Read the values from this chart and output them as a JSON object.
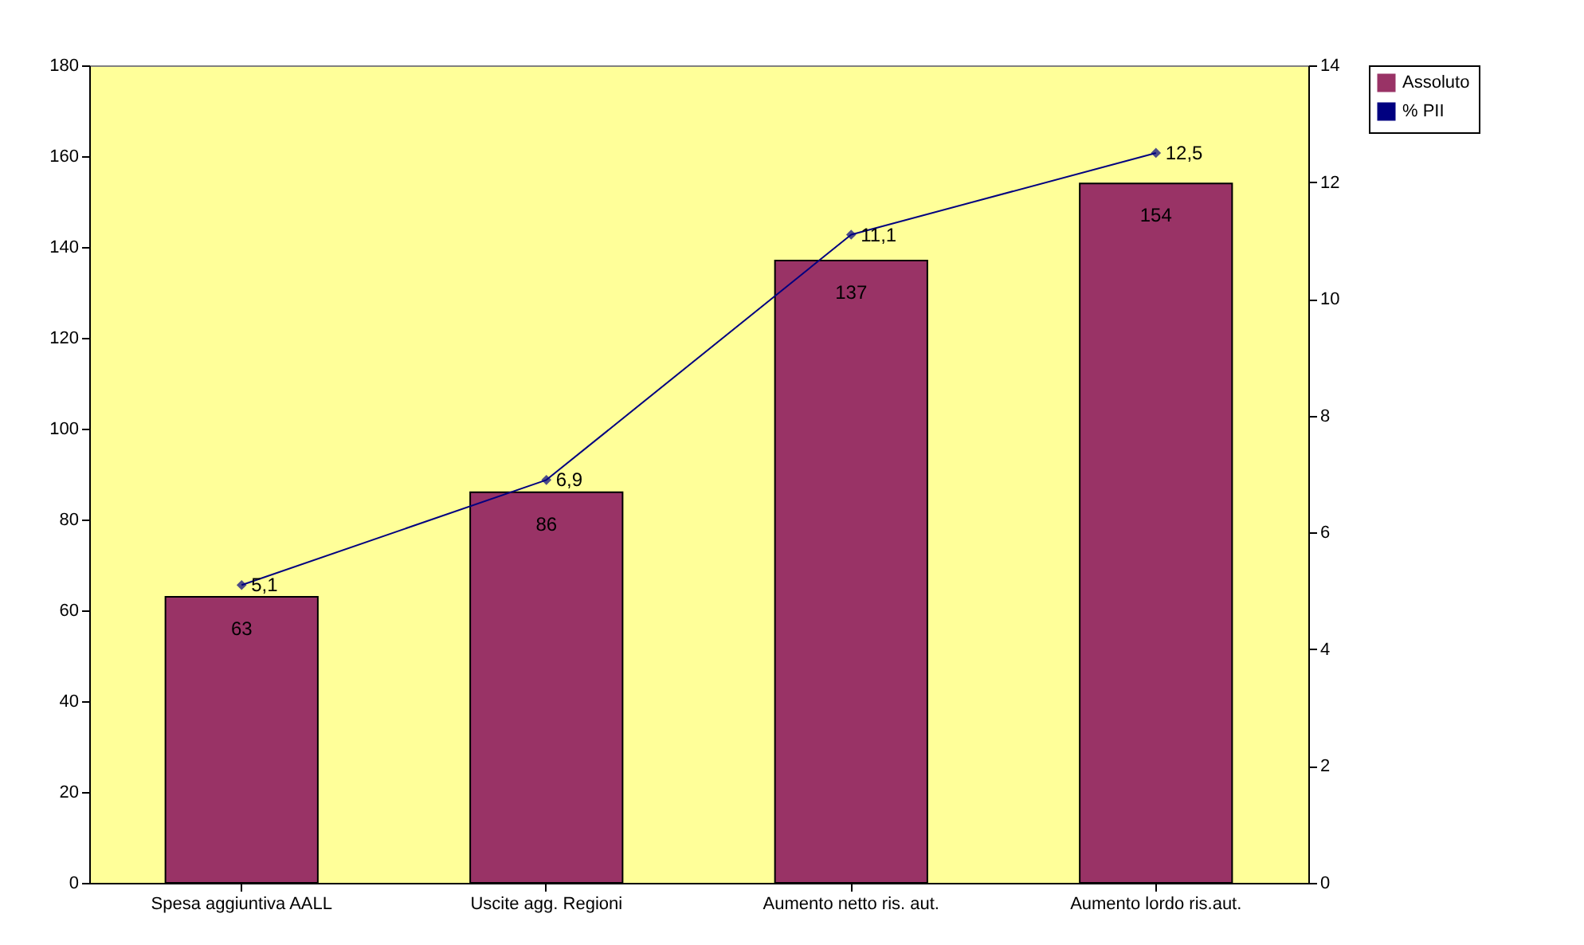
{
  "chart_data": {
    "type": "bar",
    "categories": [
      "Spesa aggiuntiva AALL",
      "Uscite agg. Regioni",
      "Aumento netto ris. aut.",
      "Aumento lordo ris.aut."
    ],
    "series": [
      {
        "name": "Assoluto",
        "color": "#993366",
        "values": [
          63,
          86,
          137,
          154
        ],
        "value_labels": [
          "63",
          "86",
          "137",
          "154"
        ]
      },
      {
        "name": "% PII",
        "type": "line",
        "axis": "y2",
        "color": "#000080",
        "values": [
          5.1,
          6.9,
          11.1,
          12.5
        ],
        "value_labels": [
          "5,1",
          "6,9",
          "11,1",
          "12,5"
        ]
      }
    ],
    "ylim": [
      0,
      180
    ],
    "yticks": [
      0,
      20,
      40,
      60,
      80,
      100,
      120,
      140,
      160,
      180
    ],
    "y2lim": [
      0,
      14
    ],
    "y2ticks": [
      0,
      2,
      4,
      6,
      8,
      10,
      12,
      14
    ],
    "legend": "right",
    "grid": false,
    "marker": "diamond",
    "line_style": "solid"
  }
}
